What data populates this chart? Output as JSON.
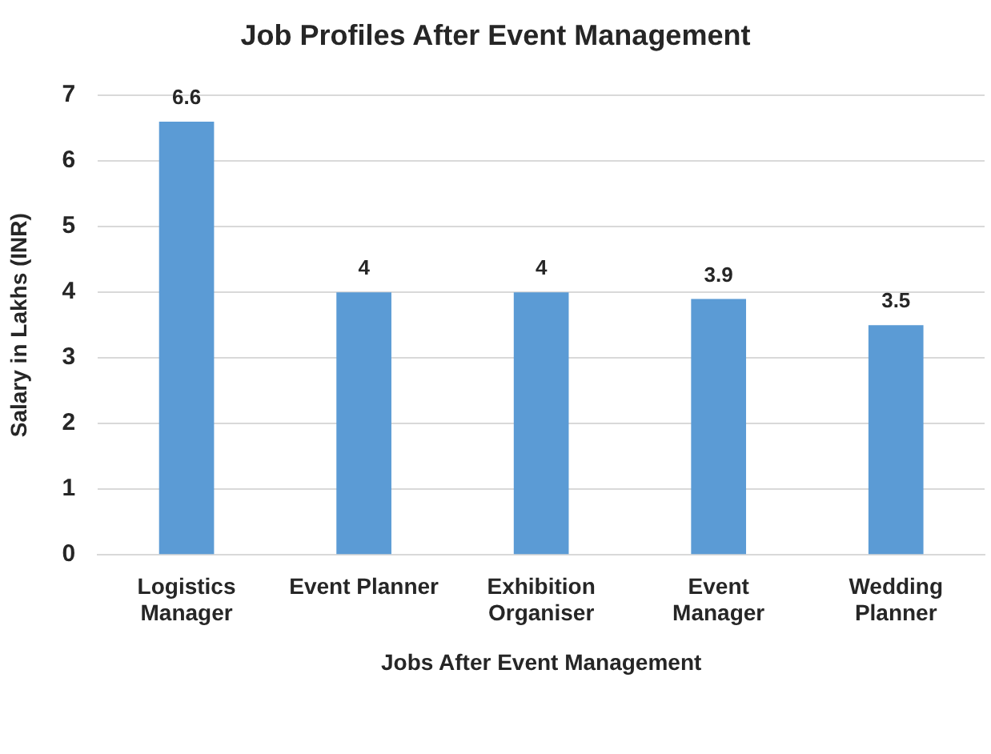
{
  "chart_data": {
    "type": "bar",
    "title": "Job Profiles After Event Management",
    "xlabel": "Jobs After Event Management",
    "ylabel": "Salary in Lakhs (INR)",
    "categories": [
      "Logistics\nManager",
      "Event Planner",
      "Exhibition\nOrganiser",
      "Event\nManager",
      "Wedding\nPlanner"
    ],
    "values": [
      6.6,
      4,
      4,
      3.9,
      3.5
    ],
    "color": "#5b9bd5",
    "ylim": [
      0,
      7
    ],
    "yticks": [
      0,
      1,
      2,
      3,
      4,
      5,
      6,
      7
    ],
    "grid": "y",
    "data_labels": true
  }
}
